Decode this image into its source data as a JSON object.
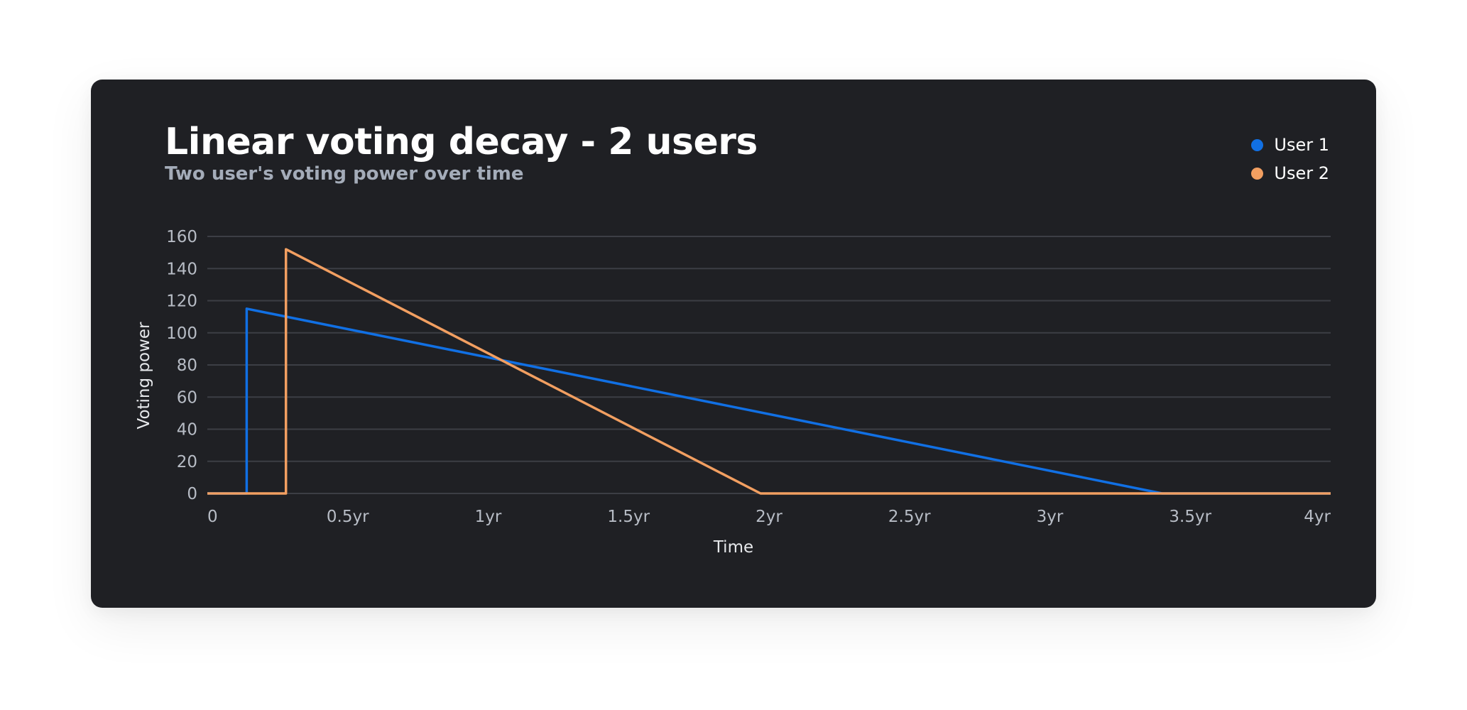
{
  "chart_data": {
    "type": "line",
    "title": "Linear voting decay - 2 users",
    "subtitle": "Two user's voting power over time",
    "xlabel": "Time",
    "ylabel": "Voting power",
    "x_ticks": [
      {
        "value": 0,
        "label": "0"
      },
      {
        "value": 0.5,
        "label": "0.5yr"
      },
      {
        "value": 1,
        "label": "1yr"
      },
      {
        "value": 1.5,
        "label": "1.5yr"
      },
      {
        "value": 2,
        "label": "2yr"
      },
      {
        "value": 2.5,
        "label": "2.5yr"
      },
      {
        "value": 3,
        "label": "3yr"
      },
      {
        "value": 3.5,
        "label": "3.5yr"
      },
      {
        "value": 4,
        "label": "4yr"
      }
    ],
    "y_ticks": [
      0,
      20,
      40,
      60,
      80,
      100,
      120,
      140,
      160
    ],
    "xlim": [
      0,
      4
    ],
    "ylim": [
      0,
      160
    ],
    "grid": true,
    "legend_position": "top-right",
    "series": [
      {
        "name": "User 1",
        "color": "#1170e4",
        "points": [
          [
            0,
            0
          ],
          [
            0.14,
            0
          ],
          [
            0.14,
            115
          ],
          [
            3.4,
            0
          ],
          [
            4,
            0
          ]
        ]
      },
      {
        "name": "User 2",
        "color": "#f29f61",
        "points": [
          [
            0,
            0
          ],
          [
            0.28,
            0
          ],
          [
            0.28,
            152
          ],
          [
            1.97,
            0
          ],
          [
            4,
            0
          ]
        ]
      }
    ]
  }
}
